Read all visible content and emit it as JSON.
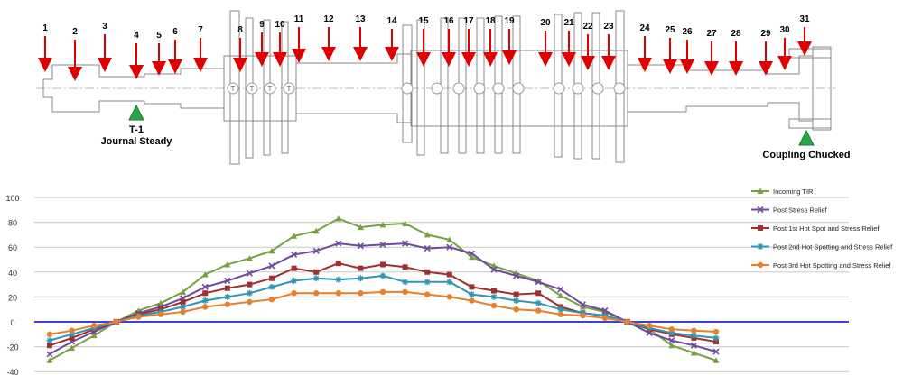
{
  "diagram": {
    "stations": [
      "1",
      "2",
      "3",
      "4",
      "5",
      "6",
      "7",
      "8",
      "9",
      "10",
      "11",
      "12",
      "13",
      "14",
      "15",
      "16",
      "17",
      "18",
      "19",
      "20",
      "21",
      "22",
      "23",
      "24",
      "25",
      "26",
      "27",
      "28",
      "29",
      "30",
      "31"
    ],
    "stage_marker_letter": "T",
    "supports": [
      {
        "name": "T-1",
        "label": "Journal Steady"
      },
      {
        "name": "",
        "label": "Coupling Chucked"
      }
    ],
    "arrow_color": "#e00000",
    "support_color": "#2aa54a"
  },
  "chart_data": {
    "type": "line",
    "title": "",
    "xlabel": "",
    "ylabel": "",
    "ylim": [
      -40,
      100
    ],
    "yticks": [
      -40,
      -20,
      0,
      20,
      40,
      60,
      80,
      100
    ],
    "grid": true,
    "zero_line_color": "#0000cc",
    "legend_position": "right",
    "x": [
      1,
      2,
      3,
      4,
      5,
      6,
      7,
      8,
      9,
      10,
      11,
      12,
      13,
      14,
      15,
      16,
      17,
      18,
      19,
      20,
      21,
      22,
      23,
      24,
      25,
      26,
      27,
      28,
      29,
      30,
      31
    ],
    "series": [
      {
        "name": "Incoming TIR",
        "color": "#77a040",
        "marker": "triangle",
        "values": [
          -31,
          -21,
          -11,
          0,
          9,
          15,
          24,
          38,
          46,
          51,
          57,
          69,
          73,
          83,
          76,
          78,
          79,
          70,
          66,
          52,
          45,
          39,
          33,
          21,
          12,
          8,
          0,
          -6,
          -19,
          -25,
          -31
        ]
      },
      {
        "name": "Post Stress Relief",
        "color": "#6f4a9e",
        "marker": "x",
        "values": [
          -26,
          -16,
          -8,
          0,
          7,
          12,
          19,
          28,
          33,
          39,
          45,
          54,
          57,
          63,
          61,
          62,
          63,
          59,
          60,
          55,
          42,
          37,
          32,
          26,
          14,
          9,
          0,
          -9,
          -15,
          -19,
          -24
        ]
      },
      {
        "name": "Post 1st Hot Spot and Stress Relief",
        "color": "#a03030",
        "marker": "square",
        "values": [
          -19,
          -13,
          -6,
          0,
          6,
          10,
          16,
          23,
          27,
          30,
          35,
          43,
          40,
          47,
          43,
          46,
          44,
          40,
          38,
          28,
          25,
          22,
          23,
          12,
          7,
          5,
          0,
          -6,
          -10,
          -13,
          -16
        ]
      },
      {
        "name": "Post 2nd Hot Spotting and Stress Relief",
        "color": "#3095b5",
        "marker": "star",
        "values": [
          -15,
          -10,
          -5,
          0,
          5,
          8,
          12,
          17,
          20,
          23,
          28,
          33,
          35,
          34,
          35,
          37,
          32,
          32,
          32,
          22,
          20,
          17,
          15,
          10,
          7,
          5,
          0,
          -5,
          -9,
          -11,
          -13
        ]
      },
      {
        "name": "Post 3rd Hot Spotting and Stress Relief",
        "color": "#e87f2c",
        "marker": "circle",
        "values": [
          -10,
          -7,
          -3,
          0,
          4,
          6,
          8,
          12,
          14,
          16,
          18,
          23,
          23,
          23,
          23,
          24,
          24,
          22,
          20,
          17,
          13,
          10,
          9,
          6,
          5,
          3,
          0,
          -3,
          -6,
          -7,
          -8
        ]
      }
    ]
  }
}
